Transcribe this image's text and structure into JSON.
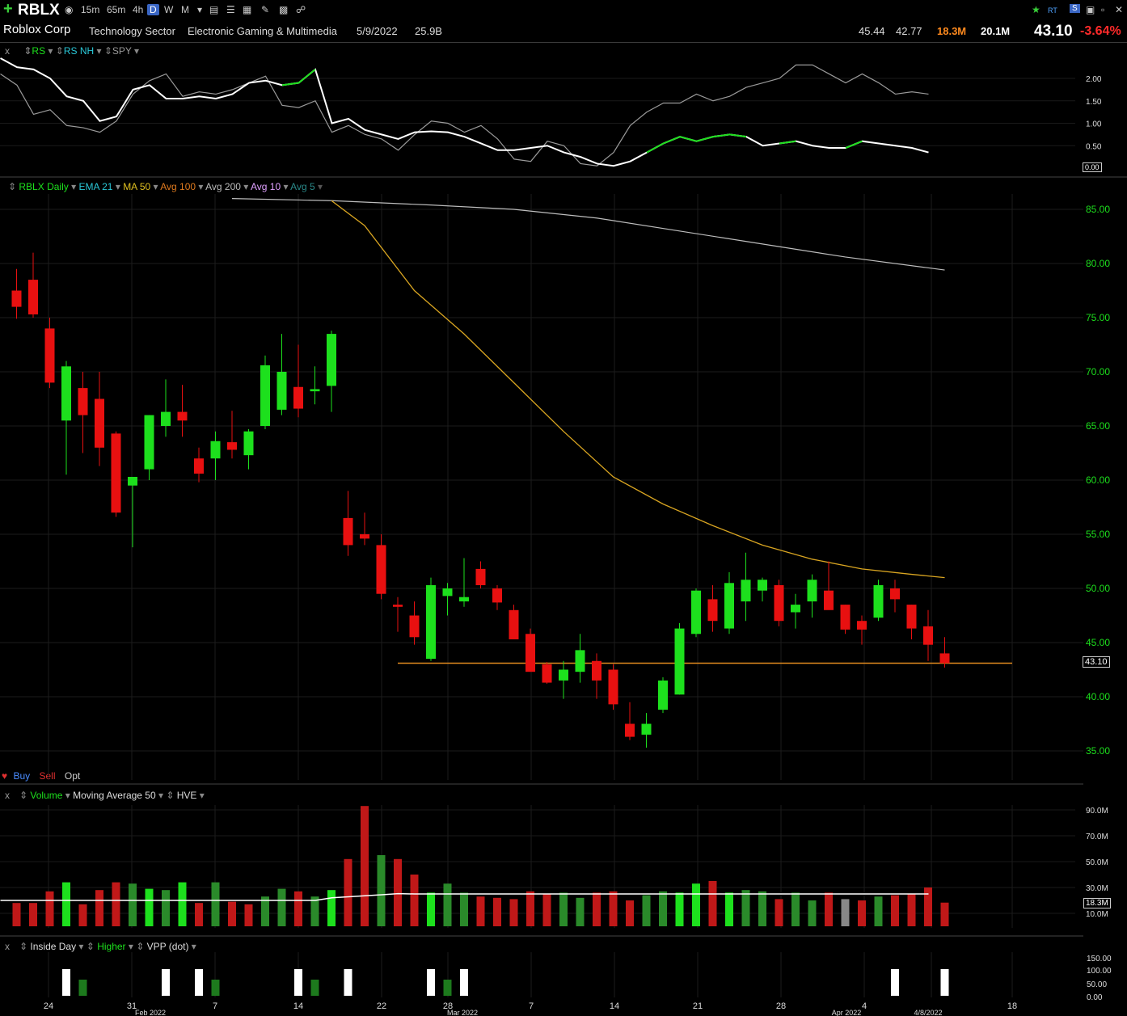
{
  "toolbar": {
    "symbol": "RBLX",
    "timeframes": [
      "15m",
      "65m",
      "4h",
      "D",
      "W",
      "M"
    ],
    "active_timeframe": "D",
    "right_badges": [
      "RT",
      "S"
    ]
  },
  "info": {
    "company": "Roblox Corp",
    "sector": "Technology Sector",
    "industry": "Electronic Gaming & Multimedia",
    "date": "5/9/2022",
    "market_cap": "25.9B",
    "high": "45.44",
    "low": "42.77",
    "volume": "18.3M",
    "avg_volume": "20.1M",
    "last": "43.10",
    "change_pct": "-3.64%"
  },
  "rs_panel": {
    "legend": [
      "x",
      "RS",
      "RS NH",
      "SPY"
    ],
    "ticks": [
      "2.00",
      "1.50",
      "1.00",
      "0.50",
      "0.00"
    ]
  },
  "price_panel": {
    "legend": [
      "RBLX Daily",
      "EMA 21",
      "MA 50",
      "Avg 100",
      "Avg 200",
      "Avg 10",
      "Avg 5"
    ],
    "ticks": [
      "85.00",
      "80.00",
      "75.00",
      "70.00",
      "65.00",
      "60.00",
      "55.00",
      "50.00",
      "45.00",
      "40.00",
      "35.00"
    ],
    "last_price_label": "43.10",
    "order_buttons": [
      "Buy",
      "Sell",
      "Opt"
    ]
  },
  "volume_panel": {
    "legend": [
      "x",
      "Volume",
      "Moving Average 50",
      "HVE"
    ],
    "ticks": [
      "90.0M",
      "70.0M",
      "50.0M",
      "30.0M",
      "10.0M"
    ],
    "last_label": "18.3M"
  },
  "inside_panel": {
    "legend": [
      "x",
      "Inside Day",
      "Higher",
      "VPP (dot)"
    ],
    "ticks": [
      "150.00",
      "100.00",
      "50.00",
      "0.00"
    ]
  },
  "x_axis": [
    "24",
    "31",
    "Feb 2022",
    "7",
    "14",
    "22",
    "28",
    "Mar 2022",
    "7",
    "14",
    "21",
    "28",
    "4",
    "Apr 2022",
    "4/8/2022",
    "18"
  ],
  "colors": {
    "up": "#1de01d",
    "down": "#e81010",
    "ma50": "#d9a521",
    "avg200": "#bdbdbd",
    "hline": "#e08a1e",
    "rs": "#ffffff",
    "rs_nh": "#1de01d",
    "spy": "#9a9a9a"
  },
  "chart_data": {
    "type": "candlestick",
    "candles": [
      {
        "o": 77.5,
        "h": 79.5,
        "l": 74.9,
        "c": 76.0
      },
      {
        "o": 78.5,
        "h": 81.0,
        "l": 75.0,
        "c": 75.3
      },
      {
        "o": 74.0,
        "h": 75.0,
        "l": 68.5,
        "c": 69.0
      },
      {
        "o": 65.5,
        "h": 71.0,
        "l": 60.5,
        "c": 70.5
      },
      {
        "o": 68.5,
        "h": 70.0,
        "l": 62.5,
        "c": 66.0
      },
      {
        "o": 67.5,
        "h": 70.0,
        "l": 61.3,
        "c": 63.0
      },
      {
        "o": 64.3,
        "h": 64.5,
        "l": 56.6,
        "c": 57.0
      },
      {
        "o": 59.5,
        "h": 60.0,
        "l": 53.8,
        "c": 60.3
      },
      {
        "o": 61.0,
        "h": 66.0,
        "l": 60.0,
        "c": 66.0
      },
      {
        "o": 65.0,
        "h": 69.3,
        "l": 64.0,
        "c": 66.3
      },
      {
        "o": 66.3,
        "h": 68.8,
        "l": 64.0,
        "c": 65.5
      },
      {
        "o": 62.0,
        "h": 63.0,
        "l": 59.8,
        "c": 60.6
      },
      {
        "o": 62.0,
        "h": 64.5,
        "l": 60.0,
        "c": 63.6
      },
      {
        "o": 63.5,
        "h": 66.4,
        "l": 62.0,
        "c": 62.8
      },
      {
        "o": 62.3,
        "h": 64.7,
        "l": 61.0,
        "c": 64.5
      },
      {
        "o": 65.0,
        "h": 71.5,
        "l": 64.7,
        "c": 70.6
      },
      {
        "o": 66.5,
        "h": 73.5,
        "l": 66.0,
        "c": 70.0
      },
      {
        "o": 68.6,
        "h": 72.5,
        "l": 65.8,
        "c": 66.6
      },
      {
        "o": 68.2,
        "h": 70.5,
        "l": 67.0,
        "c": 68.4
      },
      {
        "o": 68.7,
        "h": 73.8,
        "l": 66.3,
        "c": 73.5
      },
      {
        "o": 56.5,
        "h": 59.0,
        "l": 53.0,
        "c": 54.0
      },
      {
        "o": 55.0,
        "h": 57.0,
        "l": 54.0,
        "c": 54.6
      },
      {
        "o": 54.0,
        "h": 55.0,
        "l": 49.0,
        "c": 49.5
      },
      {
        "o": 48.5,
        "h": 49.2,
        "l": 46.0,
        "c": 48.3
      },
      {
        "o": 47.5,
        "h": 48.8,
        "l": 44.8,
        "c": 45.5
      },
      {
        "o": 43.5,
        "h": 51.0,
        "l": 43.3,
        "c": 50.3
      },
      {
        "o": 49.3,
        "h": 50.5,
        "l": 47.5,
        "c": 50.0
      },
      {
        "o": 48.8,
        "h": 52.8,
        "l": 48.3,
        "c": 49.2
      },
      {
        "o": 51.8,
        "h": 52.5,
        "l": 50.0,
        "c": 50.3
      },
      {
        "o": 50.0,
        "h": 50.3,
        "l": 48.0,
        "c": 48.7
      },
      {
        "o": 48.0,
        "h": 48.5,
        "l": 45.5,
        "c": 45.3
      },
      {
        "o": 45.8,
        "h": 46.3,
        "l": 42.3,
        "c": 42.3
      },
      {
        "o": 43.0,
        "h": 43.2,
        "l": 41.2,
        "c": 41.3
      },
      {
        "o": 41.5,
        "h": 43.3,
        "l": 39.8,
        "c": 42.5
      },
      {
        "o": 42.3,
        "h": 45.8,
        "l": 41.3,
        "c": 44.3
      },
      {
        "o": 43.3,
        "h": 44.0,
        "l": 39.8,
        "c": 41.5
      },
      {
        "o": 42.5,
        "h": 43.0,
        "l": 38.8,
        "c": 39.3
      },
      {
        "o": 37.5,
        "h": 39.5,
        "l": 36.0,
        "c": 36.3
      },
      {
        "o": 36.5,
        "h": 38.5,
        "l": 35.3,
        "c": 37.5
      },
      {
        "o": 38.8,
        "h": 41.8,
        "l": 38.5,
        "c": 41.5
      },
      {
        "o": 40.2,
        "h": 46.8,
        "l": 40.2,
        "c": 46.3
      },
      {
        "o": 45.8,
        "h": 50.0,
        "l": 45.5,
        "c": 49.8
      },
      {
        "o": 49.0,
        "h": 50.3,
        "l": 46.0,
        "c": 47.0
      },
      {
        "o": 46.3,
        "h": 51.5,
        "l": 45.8,
        "c": 50.5
      },
      {
        "o": 48.8,
        "h": 53.3,
        "l": 47.0,
        "c": 50.8
      },
      {
        "o": 49.8,
        "h": 51.0,
        "l": 48.8,
        "c": 50.8
      },
      {
        "o": 50.3,
        "h": 50.8,
        "l": 46.5,
        "c": 47.0
      },
      {
        "o": 47.8,
        "h": 49.5,
        "l": 46.3,
        "c": 48.5
      },
      {
        "o": 48.8,
        "h": 51.3,
        "l": 47.3,
        "c": 50.8
      },
      {
        "o": 49.8,
        "h": 52.5,
        "l": 48.3,
        "c": 48.0
      },
      {
        "o": 48.5,
        "h": 48.5,
        "l": 45.8,
        "c": 46.2
      },
      {
        "o": 47.0,
        "h": 47.5,
        "l": 44.8,
        "c": 46.2
      },
      {
        "o": 47.3,
        "h": 50.8,
        "l": 47.0,
        "c": 50.3
      },
      {
        "o": 50.0,
        "h": 50.8,
        "l": 47.8,
        "c": 49.0
      },
      {
        "o": 48.5,
        "h": 48.5,
        "l": 45.3,
        "c": 46.3
      },
      {
        "o": 46.5,
        "h": 48.0,
        "l": 43.3,
        "c": 44.8
      },
      {
        "o": 44.0,
        "h": 45.5,
        "l": 42.7,
        "c": 43.1
      }
    ],
    "volume_millions": [
      18,
      18,
      27,
      34,
      17,
      28,
      34,
      33,
      29,
      28,
      34,
      18,
      34,
      19,
      17,
      23,
      29,
      27,
      23,
      28,
      52,
      93,
      55,
      52,
      40,
      26,
      33,
      26,
      23,
      22,
      21,
      27,
      25,
      26,
      22,
      26,
      27,
      20,
      24,
      27,
      26,
      33,
      35,
      26,
      28,
      27,
      21,
      26,
      20,
      26,
      21,
      20,
      23,
      24,
      25,
      30,
      18.3
    ],
    "volume_up": [
      false,
      false,
      false,
      true,
      false,
      false,
      false,
      true,
      true,
      true,
      true,
      false,
      true,
      false,
      false,
      true,
      true,
      false,
      true,
      true,
      false,
      false,
      true,
      false,
      false,
      true,
      true,
      true,
      false,
      false,
      false,
      false,
      false,
      true,
      true,
      false,
      false,
      false,
      true,
      true,
      true,
      true,
      false,
      true,
      true,
      true,
      false,
      true,
      true,
      false,
      false,
      false,
      true,
      false,
      false,
      false,
      false
    ],
    "ma50_points": [
      [
        19,
        85.8
      ],
      [
        21,
        83.5
      ],
      [
        24,
        77.5
      ],
      [
        27,
        73.5
      ],
      [
        30,
        69.0
      ],
      [
        33,
        64.5
      ],
      [
        36,
        60.3
      ],
      [
        39,
        57.8
      ],
      [
        42,
        55.8
      ],
      [
        45,
        54.0
      ],
      [
        48,
        52.7
      ],
      [
        51,
        51.8
      ],
      [
        54,
        51.3
      ],
      [
        56,
        51.0
      ]
    ],
    "avg200_points": [
      [
        13,
        86.0
      ],
      [
        19,
        85.8
      ],
      [
        25,
        85.4
      ],
      [
        30,
        85.0
      ],
      [
        35,
        84.2
      ],
      [
        40,
        83.0
      ],
      [
        45,
        81.8
      ],
      [
        50,
        80.6
      ],
      [
        56,
        79.4
      ]
    ],
    "horizontal_line": 43.1,
    "rs_points": [
      2.45,
      2.25,
      2.2,
      2.0,
      1.6,
      1.5,
      1.05,
      1.15,
      1.75,
      1.85,
      1.55,
      1.55,
      1.6,
      1.55,
      1.65,
      1.9,
      1.95,
      1.85,
      1.9,
      2.2,
      1.0,
      1.1,
      0.85,
      0.75,
      0.65,
      0.8,
      0.82,
      0.8,
      0.7,
      0.55,
      0.4,
      0.4,
      0.45,
      0.5,
      0.35,
      0.25,
      0.1,
      0.05,
      0.15,
      0.35,
      0.55,
      0.7,
      0.6,
      0.7,
      0.75,
      0.7,
      0.5,
      0.55,
      0.6,
      0.5,
      0.45,
      0.45,
      0.6,
      0.55,
      0.5,
      0.45,
      0.35
    ],
    "spy_points": [
      2.1,
      1.85,
      1.2,
      1.3,
      0.95,
      0.9,
      0.8,
      1.05,
      1.65,
      1.95,
      2.1,
      1.6,
      1.7,
      1.65,
      1.75,
      1.9,
      2.05,
      1.4,
      1.35,
      1.5,
      0.8,
      0.95,
      0.75,
      0.65,
      0.4,
      0.75,
      1.05,
      1.0,
      0.8,
      0.95,
      0.65,
      0.2,
      0.15,
      0.6,
      0.5,
      0.1,
      0.05,
      0.35,
      0.95,
      1.25,
      1.45,
      1.45,
      1.65,
      1.5,
      1.6,
      1.8,
      1.9,
      2.0,
      2.3,
      2.3,
      2.1,
      1.9,
      2.1,
      1.9,
      1.65,
      1.7,
      1.65
    ],
    "inside_day_indices": [
      3,
      9,
      11,
      17,
      20,
      25,
      27,
      53,
      56
    ],
    "higher_indices": [
      4,
      12,
      18,
      26
    ],
    "ylim": [
      33.0,
      87.5
    ]
  }
}
